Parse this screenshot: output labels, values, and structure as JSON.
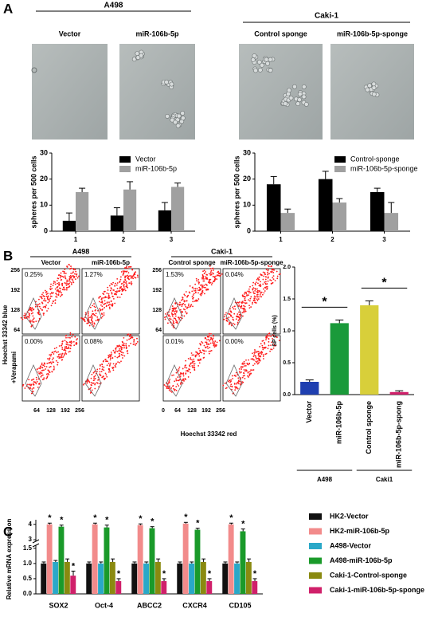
{
  "panels": [
    "A",
    "B",
    "C"
  ],
  "image_groups": [
    {
      "title": "A498",
      "labels": [
        "Vector",
        "miR-106b-5p"
      ]
    },
    {
      "title": "Caki-1",
      "labels": [
        "Control sponge",
        "miR-106b-5p-sponge"
      ]
    }
  ],
  "flow": {
    "groups": [
      {
        "title": "A498",
        "labels": [
          "Vector",
          "miR-106b-5p"
        ]
      },
      {
        "title": "Caki-1",
        "labels": [
          "Control sponge",
          "miR-106b-5p-sponge"
        ]
      }
    ],
    "percentages": [
      [
        "0.25%",
        "1.27%",
        "1.53%",
        "0.04%"
      ],
      [
        "0.00%",
        "0.08%",
        "0.01%",
        "0.00%"
      ]
    ],
    "row_label": "+Verapami",
    "ylabel": "Hoechst 33342 blue",
    "xlabel": "Hoechst 33342 red",
    "yticks": [
      256,
      192,
      128,
      64
    ],
    "xticks_left": [
      64,
      128,
      192,
      256
    ],
    "xticks_right": [
      0,
      64,
      128,
      192,
      256
    ],
    "yticks_right": [
      256,
      192,
      128,
      64
    ]
  },
  "chart_data": [
    {
      "type": "bar",
      "ylabel": "spheres per 500 cells",
      "categories": [
        "1",
        "2",
        "3"
      ],
      "series": [
        {
          "name": "Vector",
          "color": "#000000",
          "values": [
            4,
            6,
            8
          ],
          "errors": [
            3,
            3,
            3
          ]
        },
        {
          "name": "miR-106b-5p",
          "color": "#a0a0a0",
          "values": [
            15,
            16,
            17
          ],
          "errors": [
            1.5,
            3,
            1.5
          ]
        }
      ],
      "ylim": [
        0,
        30
      ],
      "yticks": [
        0,
        10,
        20,
        30
      ],
      "legend": "upper right"
    },
    {
      "type": "bar",
      "ylabel": "spheres per 500 cells",
      "categories": [
        "1",
        "2",
        "3"
      ],
      "series": [
        {
          "name": "Control-sponge",
          "color": "#000000",
          "values": [
            18,
            20,
            15
          ],
          "errors": [
            3,
            3,
            1.5
          ]
        },
        {
          "name": "miR-106b-5p-sponge",
          "color": "#a0a0a0",
          "values": [
            7,
            11,
            7
          ],
          "errors": [
            1.5,
            1.5,
            4
          ]
        }
      ],
      "ylim": [
        0,
        30
      ],
      "yticks": [
        0,
        10,
        20,
        30
      ],
      "legend": "upper right"
    },
    {
      "type": "bar",
      "ylabel": "SP cells (%)",
      "categories": [
        "Vector",
        "miR-106b-5p",
        "Control sponge",
        "miR-106b-5p-spong"
      ],
      "values": [
        0.2,
        1.12,
        1.4,
        0.04
      ],
      "errors": [
        0.03,
        0.05,
        0.07,
        0.02
      ],
      "colors": [
        "#1f3fb0",
        "#1a9a3a",
        "#d8cf3a",
        "#d0206a"
      ],
      "ylim": [
        0,
        2
      ],
      "yticks": [
        {
          "value": 0,
          "label": "0.0"
        },
        {
          "value": 0.5,
          "label": "0.5"
        },
        {
          "value": 1,
          "label": "1.0"
        },
        {
          "value": 1.5,
          "label": "1.5"
        },
        {
          "value": 2,
          "label": "2.0"
        }
      ],
      "group_labels": [
        "A498",
        "Caki1"
      ],
      "annotations": [
        "*",
        "*"
      ]
    },
    {
      "type": "bar",
      "ylabel": "Relative mRNA expression",
      "categories": [
        "SOX2",
        "Oct-4",
        "ABCC2",
        "CXCR4",
        "CD105"
      ],
      "series": [
        {
          "name": "HK2-Vector",
          "color": "#111111",
          "values": [
            1.0,
            1.0,
            1.0,
            1.0,
            1.0
          ],
          "errors": [
            0.05,
            0.05,
            0.05,
            0.05,
            0.05
          ]
        },
        {
          "name": "HK2-miR-106b-5p",
          "color": "#f28b8b",
          "values": [
            4.0,
            4.0,
            3.95,
            4.05,
            4.0
          ],
          "errors": [
            0.08,
            0.08,
            0.08,
            0.08,
            0.08
          ]
        },
        {
          "name": "A498-Vector",
          "color": "#2aa8c8",
          "values": [
            1.05,
            1.0,
            1.0,
            1.0,
            1.0
          ],
          "errors": [
            0.05,
            0.05,
            0.05,
            0.05,
            0.05
          ]
        },
        {
          "name": "A498-miR-106b-5p",
          "color": "#1a9a2a",
          "values": [
            3.85,
            3.8,
            3.75,
            3.65,
            3.55
          ],
          "errors": [
            0.1,
            0.15,
            0.1,
            0.1,
            0.15
          ]
        },
        {
          "name": "Caki-1-Control-sponge",
          "color": "#8a8a10",
          "values": [
            1.05,
            1.05,
            1.05,
            1.05,
            1.05
          ],
          "errors": [
            0.1,
            0.1,
            0.1,
            0.1,
            0.1
          ]
        },
        {
          "name": "Caki-1-miR-106b-5p-sponge",
          "color": "#d0206a",
          "values": [
            0.6,
            0.42,
            0.42,
            0.42,
            0.42
          ],
          "errors": [
            0.15,
            0.08,
            0.08,
            0.08,
            0.08
          ]
        }
      ],
      "ylim": [
        0,
        4.3
      ],
      "ybreak": [
        1.6,
        2.9
      ],
      "yticks": [
        {
          "value": 0,
          "label": "0.0"
        },
        {
          "value": 0.5,
          "label": "0.5"
        },
        {
          "value": 1,
          "label": "1.0"
        },
        {
          "value": 1.5,
          "label": "1.5"
        },
        3,
        4
      ],
      "annotation": "*",
      "legend": "right"
    }
  ]
}
